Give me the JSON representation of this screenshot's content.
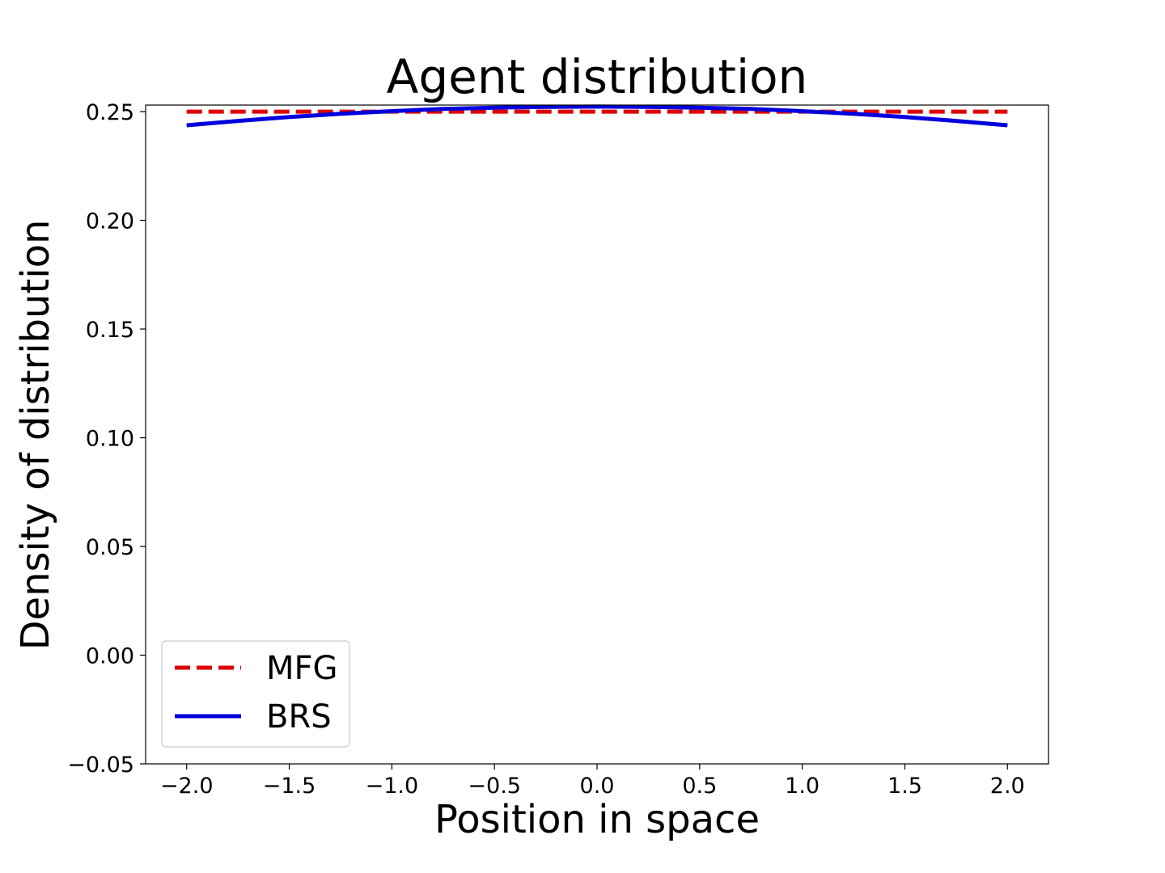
{
  "chart_data": {
    "type": "line",
    "title": "Agent distribution",
    "xlabel": "Position in space",
    "ylabel": "Density of distribution",
    "xlim": [
      -2.2,
      2.2
    ],
    "ylim": [
      -0.05,
      0.253
    ],
    "xticks": [
      -2.0,
      -1.5,
      -1.0,
      -0.5,
      0.0,
      0.5,
      1.0,
      1.5,
      2.0
    ],
    "xtick_labels": [
      "−2.0",
      "−1.5",
      "−1.0",
      "−0.5",
      "0.0",
      "0.5",
      "1.0",
      "1.5",
      "2.0"
    ],
    "yticks": [
      -0.05,
      0.0,
      0.05,
      0.1,
      0.15,
      0.2,
      0.25
    ],
    "ytick_labels": [
      "−0.05",
      "0.00",
      "0.05",
      "0.10",
      "0.15",
      "0.20",
      "0.25"
    ],
    "grid": false,
    "legend_position": "lower-left",
    "series": [
      {
        "name": "MFG",
        "color": "#dd0000",
        "style": "dashed",
        "x": [
          -2.0,
          -1.5,
          -1.0,
          -0.5,
          0.0,
          0.5,
          1.0,
          1.5,
          2.0
        ],
        "y": [
          0.25,
          0.25,
          0.25,
          0.25,
          0.25,
          0.25,
          0.25,
          0.25,
          0.25
        ]
      },
      {
        "name": "BRS",
        "color": "#0000dd",
        "style": "solid",
        "x": [
          -2.0,
          -1.75,
          -1.5,
          -1.25,
          -1.0,
          -0.75,
          -0.5,
          -0.25,
          0.0,
          0.25,
          0.5,
          0.75,
          1.0,
          1.25,
          1.5,
          1.75,
          2.0
        ],
        "y": [
          0.2437,
          0.2457,
          0.2475,
          0.249,
          0.2502,
          0.2512,
          0.2518,
          0.2522,
          0.2523,
          0.2522,
          0.2518,
          0.2512,
          0.2502,
          0.249,
          0.2475,
          0.2457,
          0.2437
        ]
      }
    ]
  }
}
